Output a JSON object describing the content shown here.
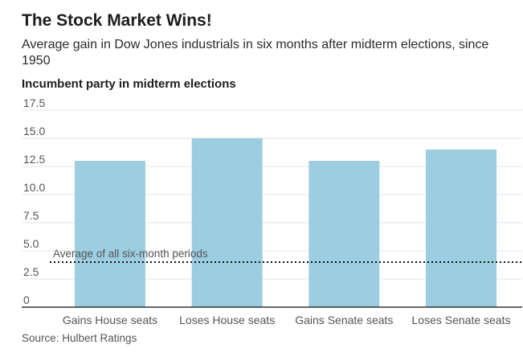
{
  "header": {
    "title": "The Stock Market Wins!",
    "subtitle": "Average gain in Dow Jones industrials in six months after midterm elections, since 1950",
    "subhead": "Incumbent party in midterm elections"
  },
  "footer": {
    "source": "Source: Hulbert Ratings"
  },
  "colors": {
    "bar": "#9ccde1",
    "grid": "#e4e4e4",
    "axis": "#333333",
    "reference": "#111111",
    "text": "#555555"
  },
  "chart_data": {
    "type": "bar",
    "title": "The Stock Market Wins!",
    "xlabel": "",
    "ylabel": "",
    "categories": [
      "Gains House seats",
      "Loses House seats",
      "Gains Senate seats",
      "Loses Senate seats"
    ],
    "values": [
      13.0,
      15.0,
      13.0,
      14.0
    ],
    "ylim": [
      0,
      17.5
    ],
    "yticks": [
      0,
      2.5,
      5.0,
      7.5,
      10.0,
      12.5,
      15.0,
      17.5
    ],
    "ytick_labels": [
      "0",
      "2.5",
      "5.0",
      "7.5",
      "10.0",
      "12.5",
      "15.0",
      "17.5"
    ],
    "grid": true,
    "reference_line": {
      "label": "Average of all six-month periods",
      "value": 4.0,
      "style": "dotted"
    }
  }
}
